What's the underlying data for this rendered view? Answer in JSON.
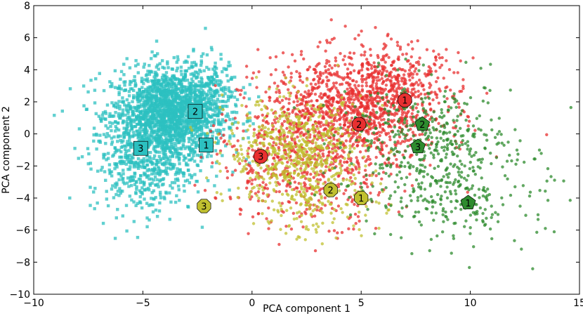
{
  "chart_data": {
    "type": "scatter",
    "title": "",
    "xlabel": "PCA component 1",
    "ylabel": "PCA component 2",
    "xlim": [
      -10,
      15
    ],
    "ylim": [
      -10,
      8
    ],
    "xticks": [
      -10,
      -5,
      0,
      5,
      10,
      15
    ],
    "yticks": [
      -10,
      -8,
      -6,
      -4,
      -2,
      0,
      2,
      4,
      6,
      8
    ],
    "grid": false,
    "series": [
      {
        "color": "#2cc0c0",
        "marker": "square",
        "clusters": [
          {
            "center": [
              -3.8,
              1.2
            ],
            "spread": [
              1.3,
              1.4
            ],
            "count": 1800
          },
          {
            "center": [
              -5.0,
              -2.0
            ],
            "spread": [
              1.2,
              1.5
            ],
            "count": 450
          },
          {
            "center": [
              -2.5,
              3.0
            ],
            "spread": [
              1.0,
              1.0
            ],
            "count": 200
          }
        ],
        "centers": [
          {
            "label": "1",
            "x": -2.1,
            "y": -0.7
          },
          {
            "label": "2",
            "x": -2.6,
            "y": 1.4
          },
          {
            "label": "3",
            "x": -5.1,
            "y": -0.9
          }
        ]
      },
      {
        "color": "#e83030",
        "marker": "circle",
        "clusters": [
          {
            "center": [
              4.5,
              1.5
            ],
            "spread": [
              2.1,
              1.7
            ],
            "count": 1100
          },
          {
            "center": [
              2.5,
              -2.0
            ],
            "spread": [
              2.0,
              1.8
            ],
            "count": 500
          },
          {
            "center": [
              6.5,
              3.0
            ],
            "spread": [
              1.5,
              1.3
            ],
            "count": 300
          }
        ],
        "centers": [
          {
            "label": "1",
            "x": 7.0,
            "y": 2.1
          },
          {
            "label": "2",
            "x": 4.9,
            "y": 0.6
          },
          {
            "label": "3",
            "x": 0.4,
            "y": -1.4
          }
        ]
      },
      {
        "color": "#c0c030",
        "marker": "circle",
        "clusters": [
          {
            "center": [
              2.0,
              -1.0
            ],
            "spread": [
              1.6,
              1.6
            ],
            "count": 600
          },
          {
            "center": [
              3.0,
              -4.0
            ],
            "spread": [
              1.5,
              1.3
            ],
            "count": 150
          }
        ],
        "centers": [
          {
            "label": "1",
            "x": 5.0,
            "y": -4.0
          },
          {
            "label": "2",
            "x": 3.6,
            "y": -3.5
          },
          {
            "label": "3",
            "x": -2.2,
            "y": -4.5
          }
        ]
      },
      {
        "color": "#2e8b2e",
        "marker": "circle",
        "clusters": [
          {
            "center": [
              8.0,
              -1.0
            ],
            "spread": [
              2.0,
              2.2
            ],
            "count": 500
          },
          {
            "center": [
              10.5,
              -4.5
            ],
            "spread": [
              1.6,
              1.4
            ],
            "count": 120
          }
        ],
        "centers": [
          {
            "label": "1",
            "x": 9.9,
            "y": -4.3
          },
          {
            "label": "2",
            "x": 7.8,
            "y": 0.6
          },
          {
            "label": "3",
            "x": 7.6,
            "y": -0.8
          }
        ]
      }
    ]
  }
}
